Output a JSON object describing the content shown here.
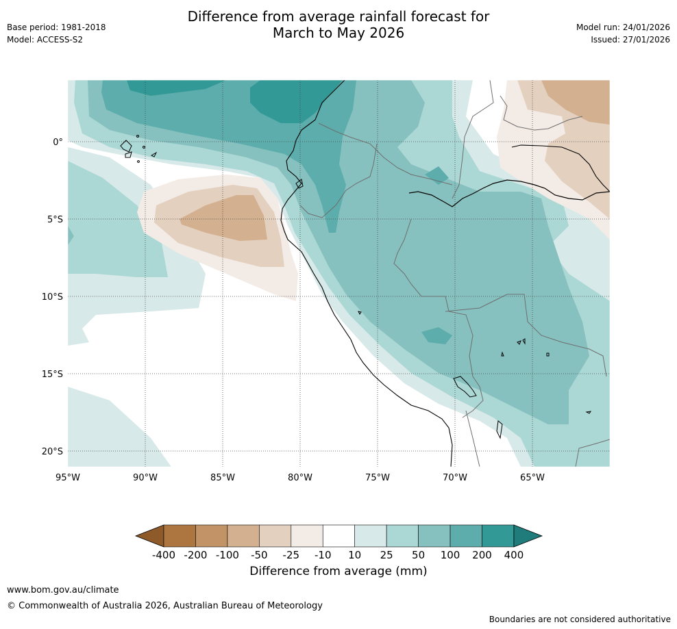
{
  "header": {
    "title_line1": "Difference from average rainfall forecast for",
    "title_line2": "March to May 2026",
    "base_period": "Base period: 1981-2018",
    "model": "Model: ACCESS-S2",
    "model_run": "Model run: 24/01/2026",
    "issued": "Issued: 27/01/2026"
  },
  "map": {
    "lat_labels": [
      "0°",
      "5°S",
      "10°S",
      "15°S",
      "20°S"
    ],
    "lon_labels": [
      "95°W",
      "90°W",
      "85°W",
      "80°W",
      "75°W",
      "70°W",
      "65°W"
    ]
  },
  "colorbar": {
    "tick_labels": [
      "-400",
      "-200",
      "-100",
      "-50",
      "-25",
      "-10",
      "10",
      "25",
      "50",
      "100",
      "200",
      "400"
    ],
    "colors": [
      "#ad7640",
      "#c29366",
      "#d3b08f",
      "#e4d0bf",
      "#f3ebe6",
      "#ffffff",
      "#d7e9e8",
      "#abd7d5",
      "#86c1c0",
      "#5cadac",
      "#339996"
    ],
    "title": "Difference from average (mm)"
  },
  "footer": {
    "url": "www.bom.gov.au/climate",
    "copyright": "© Commonwealth of Australia 2026, Australian Bureau of Meteorology",
    "disclaimer": "Boundaries are not considered authoritative"
  }
}
